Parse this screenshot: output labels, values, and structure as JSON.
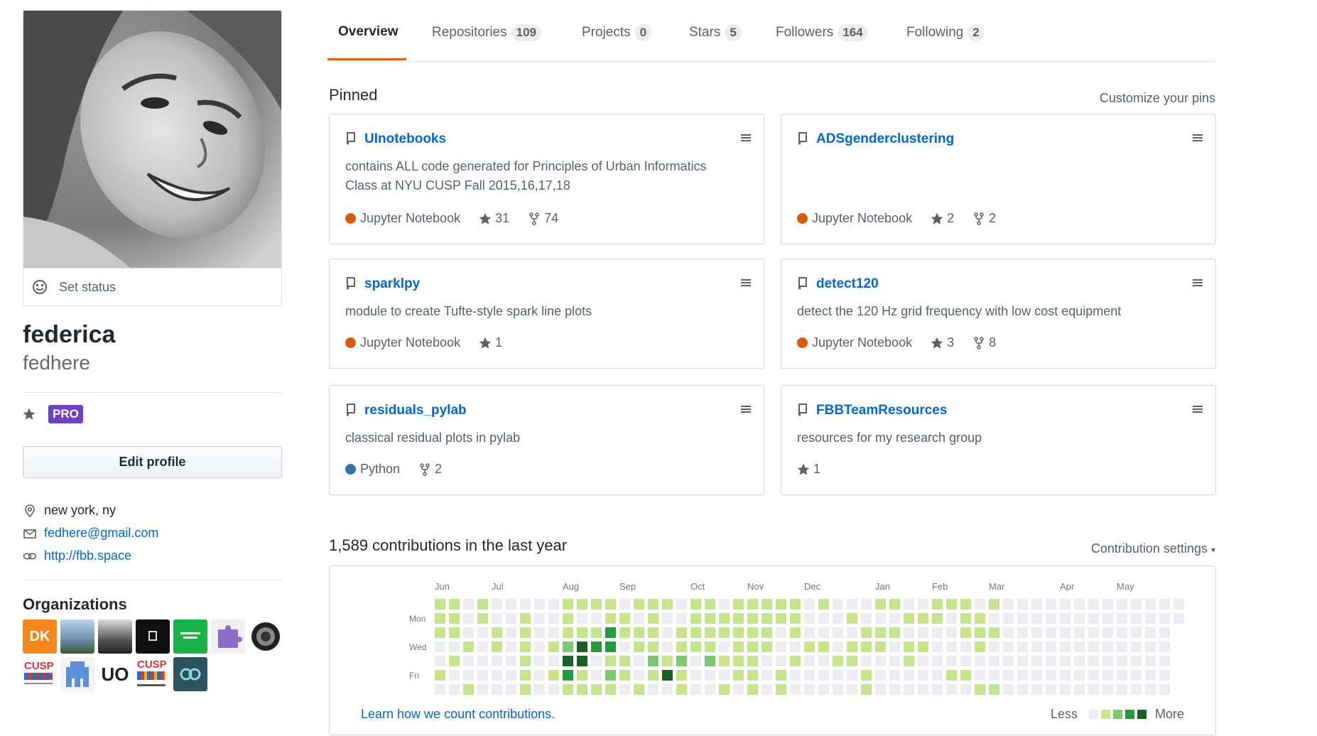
{
  "profile": {
    "set_status": "Set status",
    "full_name": "federica",
    "username": "fedhere",
    "pro_badge": "PRO",
    "edit_profile": "Edit profile",
    "location": "new york, ny",
    "email": "fedhere@gmail.com",
    "website": "http://fbb.space"
  },
  "organizations": {
    "title": "Organizations",
    "items": [
      {
        "label": "DK",
        "color": "#f6871f"
      },
      {
        "label": "",
        "color": "#6a8caf"
      },
      {
        "label": "",
        "color": "#555555"
      },
      {
        "label": "",
        "color": "#111111"
      },
      {
        "label": "",
        "color": "#19b34a"
      },
      {
        "label": "",
        "color": "#8b6cc9"
      },
      {
        "label": "",
        "color": "#222222"
      },
      {
        "label": "CUSP",
        "color": "#ffffff"
      },
      {
        "label": "",
        "color": "#ffffff"
      },
      {
        "label": "UO",
        "color": "#ffffff"
      },
      {
        "label": "CUSP",
        "color": "#ffffff"
      },
      {
        "label": "",
        "color": "#2d5361"
      }
    ]
  },
  "tabs": [
    {
      "label": "Overview",
      "count": null
    },
    {
      "label": "Repositories",
      "count": "109"
    },
    {
      "label": "Projects",
      "count": "0"
    },
    {
      "label": "Stars",
      "count": "5"
    },
    {
      "label": "Followers",
      "count": "164"
    },
    {
      "label": "Following",
      "count": "2"
    }
  ],
  "pinned": {
    "title": "Pinned",
    "customize": "Customize your pins",
    "repos": [
      {
        "name": "UInotebooks",
        "description": "contains ALL code generated for Principles of Urban Informatics Class at NYU CUSP Fall 2015,16,17,18",
        "language": "Jupyter Notebook",
        "lang_color": "#DA5B0B",
        "stars": "31",
        "forks": "74"
      },
      {
        "name": "ADSgenderclustering",
        "description": "",
        "language": "Jupyter Notebook",
        "lang_color": "#DA5B0B",
        "stars": "2",
        "forks": "2"
      },
      {
        "name": "sparklpy",
        "description": "module to create Tufte-style spark line plots",
        "language": "Jupyter Notebook",
        "lang_color": "#DA5B0B",
        "stars": "1",
        "forks": null
      },
      {
        "name": "detect120",
        "description": "detect the 120 Hz grid frequency with low cost equipment",
        "language": "Jupyter Notebook",
        "lang_color": "#DA5B0B",
        "stars": "3",
        "forks": "8"
      },
      {
        "name": "residuals_pylab",
        "description": "classical residual plots in pylab",
        "language": "Python",
        "lang_color": "#3572A5",
        "stars": null,
        "forks": "2"
      },
      {
        "name": "FBBTeamResources",
        "description": "resources for my research group",
        "language": null,
        "lang_color": null,
        "stars": "1",
        "forks": null
      }
    ]
  },
  "contributions": {
    "title": "1,589 contributions in the last year",
    "settings": "Contribution settings",
    "learn_link": "Learn how we count contributions.",
    "legend_less": "Less",
    "legend_more": "More",
    "months": [
      "Jun",
      "Jul",
      "Aug",
      "Sep",
      "Oct",
      "Nov",
      "Dec",
      "Jan",
      "Feb",
      "Mar",
      "Apr",
      "May"
    ],
    "day_labels": [
      "Mon",
      "Wed",
      "Fri"
    ],
    "colors": [
      "#ebedf0",
      "#c6e48b",
      "#7bc96f",
      "#239a3b",
      "#196127"
    ],
    "grid_levels": [
      "1101000001111011101101111101000110011101",
      "1101001001001101001111111100010001110110",
      "1100101001113111011111110100001110000111",
      "0010101012433011011101110011011101100010",
      "0100001004401102120211100100110001000000",
      "1000001013102101410001101000001000001100",
      "0010001001111010010010101000001000000011"
    ]
  }
}
